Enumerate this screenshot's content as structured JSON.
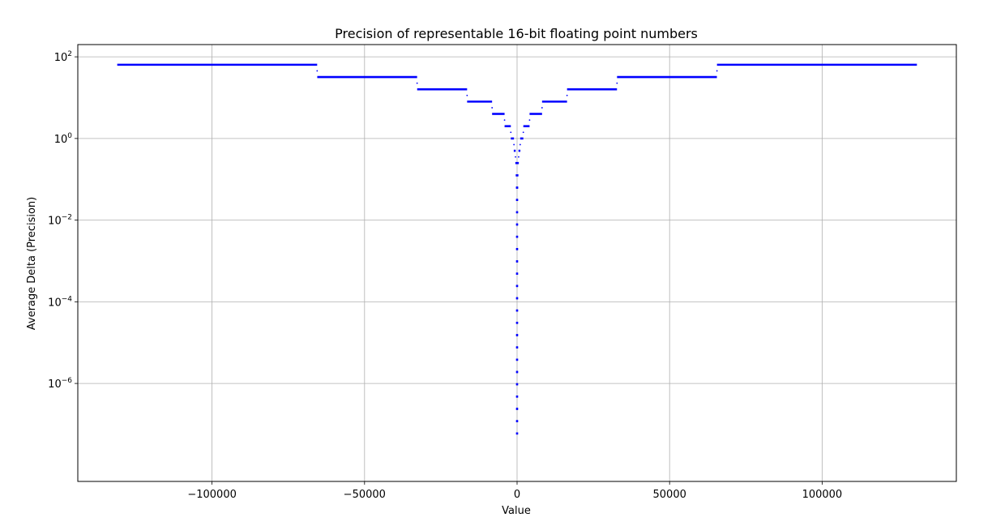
{
  "chart_data": {
    "type": "scatter",
    "title": "Precision of representable 16-bit floating point numbers",
    "xlabel": "Value",
    "ylabel": "Average Delta (Precision)",
    "xlim": [
      -144000,
      144000
    ],
    "ylim_log10": [
      -8.4,
      2.3
    ],
    "yscale": "log",
    "grid": true,
    "marker_color": "#0000ff",
    "x_ticks": [
      {
        "value": -100000,
        "label": "−100000"
      },
      {
        "value": -50000,
        "label": "−50000"
      },
      {
        "value": 0,
        "label": "0"
      },
      {
        "value": 50000,
        "label": "50000"
      },
      {
        "value": 100000,
        "label": "100000"
      }
    ],
    "y_ticks": [
      {
        "exp": 2,
        "base": "10",
        "sup": "2"
      },
      {
        "exp": 0,
        "base": "10",
        "sup": "0"
      },
      {
        "exp": -2,
        "base": "10",
        "sup": "−2"
      },
      {
        "exp": -4,
        "base": "10",
        "sup": "−4"
      },
      {
        "exp": -6,
        "base": "10",
        "sup": "−6"
      }
    ],
    "steps": [
      {
        "x_start": 65536,
        "x_end": 131072,
        "y": 64
      },
      {
        "x_start": 32768,
        "x_end": 65504,
        "y": 32
      },
      {
        "x_start": 16384,
        "x_end": 32752,
        "y": 16
      },
      {
        "x_start": 8192,
        "x_end": 16376,
        "y": 8
      },
      {
        "x_start": 4096,
        "x_end": 8188,
        "y": 4
      },
      {
        "x_start": 2048,
        "x_end": 4094,
        "y": 2
      },
      {
        "x_start": 1024,
        "x_end": 2047,
        "y": 1
      },
      {
        "x_start": 512,
        "x_end": 1023.5,
        "y": 0.5
      },
      {
        "x_start": 0,
        "x_end": 511,
        "y": 0.25
      },
      {
        "x_start": 0,
        "x_end": 256,
        "y": 0.125
      },
      {
        "x_start": 0,
        "x_end": 128,
        "y": 0.0625
      },
      {
        "x_start": 0,
        "x_end": 64,
        "y": 0.03125
      },
      {
        "x_start": 0,
        "x_end": 32,
        "y": 0.015625
      },
      {
        "x_start": 0,
        "x_end": 16,
        "y": 0.0078125
      },
      {
        "x_start": 0,
        "x_end": 8,
        "y": 0.00390625
      },
      {
        "x_start": 0,
        "x_end": 4,
        "y": 0.001953125
      },
      {
        "x_start": 0,
        "x_end": 2,
        "y": 0.0009765625
      },
      {
        "x_start": 0,
        "x_end": 1,
        "y": 0.00048828125
      },
      {
        "x_start": 0,
        "x_end": 0.5,
        "y": 0.000244140625
      },
      {
        "x_start": 0,
        "x_end": 0.25,
        "y": 0.0001220703125
      },
      {
        "x_start": 0,
        "x_end": 0.125,
        "y": 6.103515625e-05
      },
      {
        "x_start": 0,
        "x_end": 0.0625,
        "y": 3.0517578125e-05
      },
      {
        "x_start": 0,
        "x_end": 0.03125,
        "y": 1.52587890625e-05
      },
      {
        "x_start": 0,
        "x_end": 0.015625,
        "y": 7.62939453125e-06
      },
      {
        "x_start": 0,
        "x_end": 0.0078125,
        "y": 3.814697265625e-06
      },
      {
        "x_start": 0,
        "x_end": 0.00390625,
        "y": 1.9073486328125e-06
      },
      {
        "x_start": 0,
        "x_end": 0.001953125,
        "y": 9.5367431640625e-07
      },
      {
        "x_start": 0,
        "x_end": 0.0009765625,
        "y": 4.76837158203125e-07
      },
      {
        "x_start": 0,
        "x_end": 0.00048828125,
        "y": 2.384185791015625e-07
      },
      {
        "x_start": 0,
        "x_end": 0.000244140625,
        "y": 1.1920928955078125e-07
      },
      {
        "x_start": 0,
        "x_end": 0.0001220703125,
        "y": 5.960464477539063e-08
      }
    ],
    "symmetric": true
  }
}
